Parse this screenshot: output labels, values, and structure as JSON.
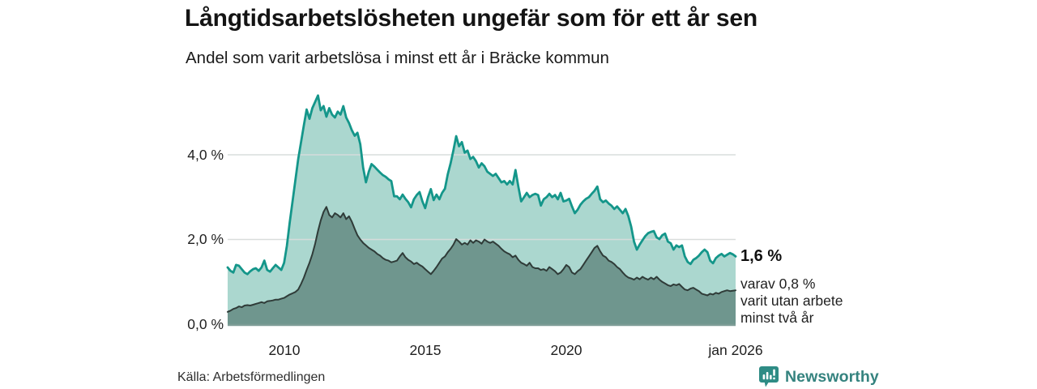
{
  "header": {
    "title": "Långtidsarbetslösheten ungefär som för ett år sen",
    "subtitle": "Andel som varit arbetslösa i minst ett år i Bräcke kommun"
  },
  "chart_data": {
    "type": "area",
    "title": "Långtidsarbetslösheten ungefär som för ett år sen",
    "subtitle": "Andel som varit arbetslösa i minst ett år i Bräcke kommun",
    "xlabel": "",
    "ylabel": "",
    "x_start": 2008.0,
    "x_step": 0.1,
    "x_end": 2026.0,
    "ylim": [
      0,
      5.6
    ],
    "grid": "horizontal",
    "legend_position": "none",
    "y_ticks": [
      {
        "value": 0,
        "label": "0,0 %"
      },
      {
        "value": 2,
        "label": "2,0 %"
      },
      {
        "value": 4,
        "label": "4,0 %"
      }
    ],
    "x_ticks": [
      {
        "x": 2010,
        "label": "2010"
      },
      {
        "x": 2015,
        "label": "2015"
      },
      {
        "x": 2020,
        "label": "2020"
      },
      {
        "x": 2026,
        "label": "jan 2026"
      }
    ],
    "series": [
      {
        "name": "Arbetslösa minst ett år",
        "color_fill": "#abd7cf",
        "color_line": "#14968a",
        "latest_value": "1,6 %",
        "values": [
          1.34,
          1.26,
          1.22,
          1.4,
          1.38,
          1.3,
          1.22,
          1.18,
          1.25,
          1.3,
          1.32,
          1.26,
          1.34,
          1.5,
          1.28,
          1.24,
          1.32,
          1.4,
          1.34,
          1.28,
          1.45,
          1.85,
          2.4,
          2.9,
          3.4,
          3.9,
          4.3,
          4.7,
          5.07,
          4.85,
          5.1,
          5.25,
          5.4,
          5.05,
          5.15,
          4.9,
          5.1,
          4.95,
          4.88,
          5.02,
          4.95,
          5.15,
          4.88,
          4.75,
          4.58,
          4.45,
          4.52,
          4.25,
          3.7,
          3.35,
          3.6,
          3.78,
          3.72,
          3.65,
          3.58,
          3.52,
          3.48,
          3.42,
          3.38,
          3.02,
          3.02,
          2.95,
          3.06,
          2.96,
          2.88,
          2.76,
          2.95,
          3.05,
          3.12,
          2.9,
          2.74,
          3.0,
          3.19,
          2.93,
          3.06,
          2.95,
          3.1,
          3.2,
          3.54,
          3.8,
          4.11,
          4.44,
          4.2,
          4.3,
          4.05,
          4.1,
          3.9,
          3.95,
          3.85,
          3.7,
          3.8,
          3.73,
          3.6,
          3.55,
          3.5,
          3.55,
          3.45,
          3.35,
          3.38,
          3.3,
          3.38,
          3.3,
          3.64,
          3.25,
          2.9,
          3.0,
          3.1,
          3.0,
          3.05,
          3.08,
          3.05,
          2.8,
          2.95,
          3.0,
          3.08,
          3.0,
          3.05,
          2.95,
          3.1,
          2.9,
          2.92,
          2.96,
          2.78,
          2.62,
          2.7,
          2.82,
          2.9,
          2.96,
          3.0,
          3.08,
          3.15,
          3.25,
          2.95,
          2.88,
          2.92,
          2.85,
          2.8,
          2.72,
          2.78,
          2.7,
          2.62,
          2.72,
          2.55,
          2.3,
          1.95,
          1.76,
          1.88,
          1.98,
          2.08,
          2.15,
          2.18,
          2.2,
          2.05,
          2.01,
          2.1,
          2.14,
          1.95,
          1.91,
          1.76,
          1.86,
          1.82,
          1.86,
          1.6,
          1.47,
          1.42,
          1.52,
          1.56,
          1.62,
          1.7,
          1.76,
          1.7,
          1.5,
          1.44,
          1.56,
          1.62,
          1.66,
          1.6,
          1.64,
          1.68,
          1.65,
          1.6
        ]
      },
      {
        "name": "Arbetslösa minst två år",
        "color_fill": "#6f968e",
        "color_line": "#2f3b38",
        "latest_value": "0,8 %",
        "values": [
          0.29,
          0.32,
          0.36,
          0.38,
          0.42,
          0.4,
          0.44,
          0.45,
          0.44,
          0.46,
          0.48,
          0.5,
          0.52,
          0.5,
          0.54,
          0.55,
          0.56,
          0.58,
          0.58,
          0.6,
          0.62,
          0.66,
          0.7,
          0.73,
          0.76,
          0.82,
          0.95,
          1.1,
          1.28,
          1.45,
          1.65,
          1.9,
          2.2,
          2.45,
          2.65,
          2.77,
          2.58,
          2.52,
          2.62,
          2.58,
          2.52,
          2.62,
          2.48,
          2.55,
          2.42,
          2.25,
          2.1,
          2.0,
          1.92,
          1.86,
          1.8,
          1.76,
          1.72,
          1.66,
          1.62,
          1.56,
          1.52,
          1.5,
          1.46,
          1.48,
          1.5,
          1.6,
          1.68,
          1.58,
          1.52,
          1.48,
          1.42,
          1.45,
          1.4,
          1.36,
          1.3,
          1.24,
          1.18,
          1.26,
          1.35,
          1.45,
          1.55,
          1.6,
          1.7,
          1.78,
          1.88,
          2.01,
          1.95,
          1.88,
          1.92,
          1.88,
          1.98,
          1.92,
          1.98,
          1.95,
          1.9,
          2.0,
          1.95,
          1.92,
          1.95,
          1.9,
          1.85,
          1.78,
          1.72,
          1.68,
          1.65,
          1.58,
          1.62,
          1.52,
          1.45,
          1.42,
          1.38,
          1.45,
          1.35,
          1.32,
          1.32,
          1.28,
          1.3,
          1.26,
          1.35,
          1.3,
          1.25,
          1.18,
          1.22,
          1.3,
          1.4,
          1.35,
          1.22,
          1.18,
          1.25,
          1.3,
          1.4,
          1.5,
          1.6,
          1.7,
          1.8,
          1.85,
          1.72,
          1.62,
          1.58,
          1.5,
          1.47,
          1.42,
          1.35,
          1.3,
          1.22,
          1.15,
          1.1,
          1.08,
          1.05,
          1.1,
          1.06,
          1.12,
          1.08,
          1.05,
          1.1,
          1.06,
          1.12,
          1.05,
          1.0,
          0.96,
          0.92,
          0.9,
          0.94,
          0.92,
          0.95,
          0.88,
          0.82,
          0.8,
          0.84,
          0.86,
          0.82,
          0.78,
          0.72,
          0.7,
          0.68,
          0.72,
          0.7,
          0.74,
          0.72,
          0.76,
          0.78,
          0.8,
          0.78,
          0.79,
          0.8
        ]
      }
    ],
    "annotation": {
      "value_label": "1,6 %",
      "detail_lines": [
        "varav 0,8 %",
        "varit utan arbete",
        "minst två år"
      ]
    }
  },
  "footer": {
    "source": "Källa: Arbetsförmedlingen",
    "brand": "Newsworthy"
  },
  "colors": {
    "accent_teal": "#14968a",
    "fill_light": "#abd7cf",
    "fill_dark": "#6f968e",
    "line_dark": "#2f3b38",
    "baseline": "#7d9c96",
    "gridline": "#d8dcdb",
    "brand_teal": "#35837f",
    "text": "#141414"
  }
}
